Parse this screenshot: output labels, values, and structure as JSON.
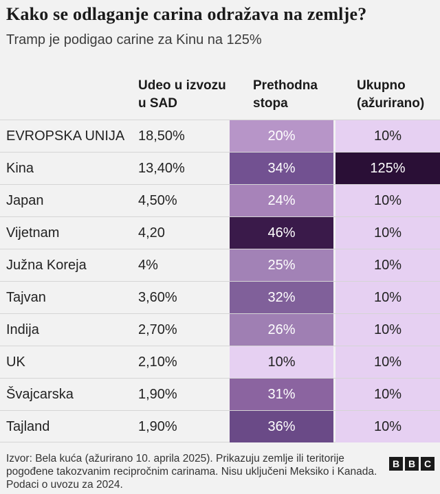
{
  "title": "Kako se odlaganje carina odražava na zemlje?",
  "subtitle": "Tramp je podigao carine za Kinu na 125%",
  "columns": {
    "share_line1": "Udeo u izvozu",
    "share_line2": "u SAD",
    "prev_line1": "Prethodna",
    "prev_line2": "stopa",
    "total_line1": "Ukupno",
    "total_line2": "(ažurirano)"
  },
  "chart_data": {
    "type": "table",
    "title": "Kako se odlaganje carina odražava na zemlje?",
    "subtitle": "Tramp je podigao carine za Kinu na 125%",
    "rows": [
      {
        "country": "EVROPSKA UNIJA",
        "share": "18,50%",
        "prev": "20%",
        "prev_value": 20,
        "total": "10%",
        "total_value": 10
      },
      {
        "country": "Kina",
        "share": "13,40%",
        "prev": "34%",
        "prev_value": 34,
        "total": "125%",
        "total_value": 125
      },
      {
        "country": "Japan",
        "share": "4,50%",
        "prev": "24%",
        "prev_value": 24,
        "total": "10%",
        "total_value": 10
      },
      {
        "country": "Vijetnam",
        "share": "4,20",
        "prev": "46%",
        "prev_value": 46,
        "total": "10%",
        "total_value": 10
      },
      {
        "country": "Južna Koreja",
        "share": "4%",
        "prev": "25%",
        "prev_value": 25,
        "total": "10%",
        "total_value": 10
      },
      {
        "country": "Tajvan",
        "share": "3,60%",
        "prev": "32%",
        "prev_value": 32,
        "total": "10%",
        "total_value": 10
      },
      {
        "country": "Indija",
        "share": "2,70%",
        "prev": "26%",
        "prev_value": 26,
        "total": "10%",
        "total_value": 10
      },
      {
        "country": "UK",
        "share": "2,10%",
        "prev": "10%",
        "prev_value": 10,
        "total": "10%",
        "total_value": 10
      },
      {
        "country": "Švajcarska",
        "share": "1,90%",
        "prev": "31%",
        "prev_value": 31,
        "total": "10%",
        "total_value": 10
      },
      {
        "country": "Tajland",
        "share": "1,90%",
        "prev": "36%",
        "prev_value": 36,
        "total": "10%",
        "total_value": 10
      }
    ]
  },
  "source": "Izvor: Bela kuća (ažurirano 10. aprila 2025). Prikazuju zemlje ili teritorije pogođene takozvanim recipročnim carinama. Nisu uključeni Meksiko i Kanada. Podaci o uvozu za 2024.",
  "logo": [
    "B",
    "B",
    "C"
  ],
  "colors": {
    "light": "#e6d0f2",
    "rate_20": "#b795c8",
    "rate_24": "#a783b9",
    "rate_25": "#a282b6",
    "rate_26": "#9f7fb3",
    "rate_31": "#8b64a0",
    "rate_32": "#80609a",
    "rate_34": "#725191",
    "rate_36": "#6a4a87",
    "rate_46": "#3a1a4a",
    "rate_125": "#2a0f36"
  }
}
